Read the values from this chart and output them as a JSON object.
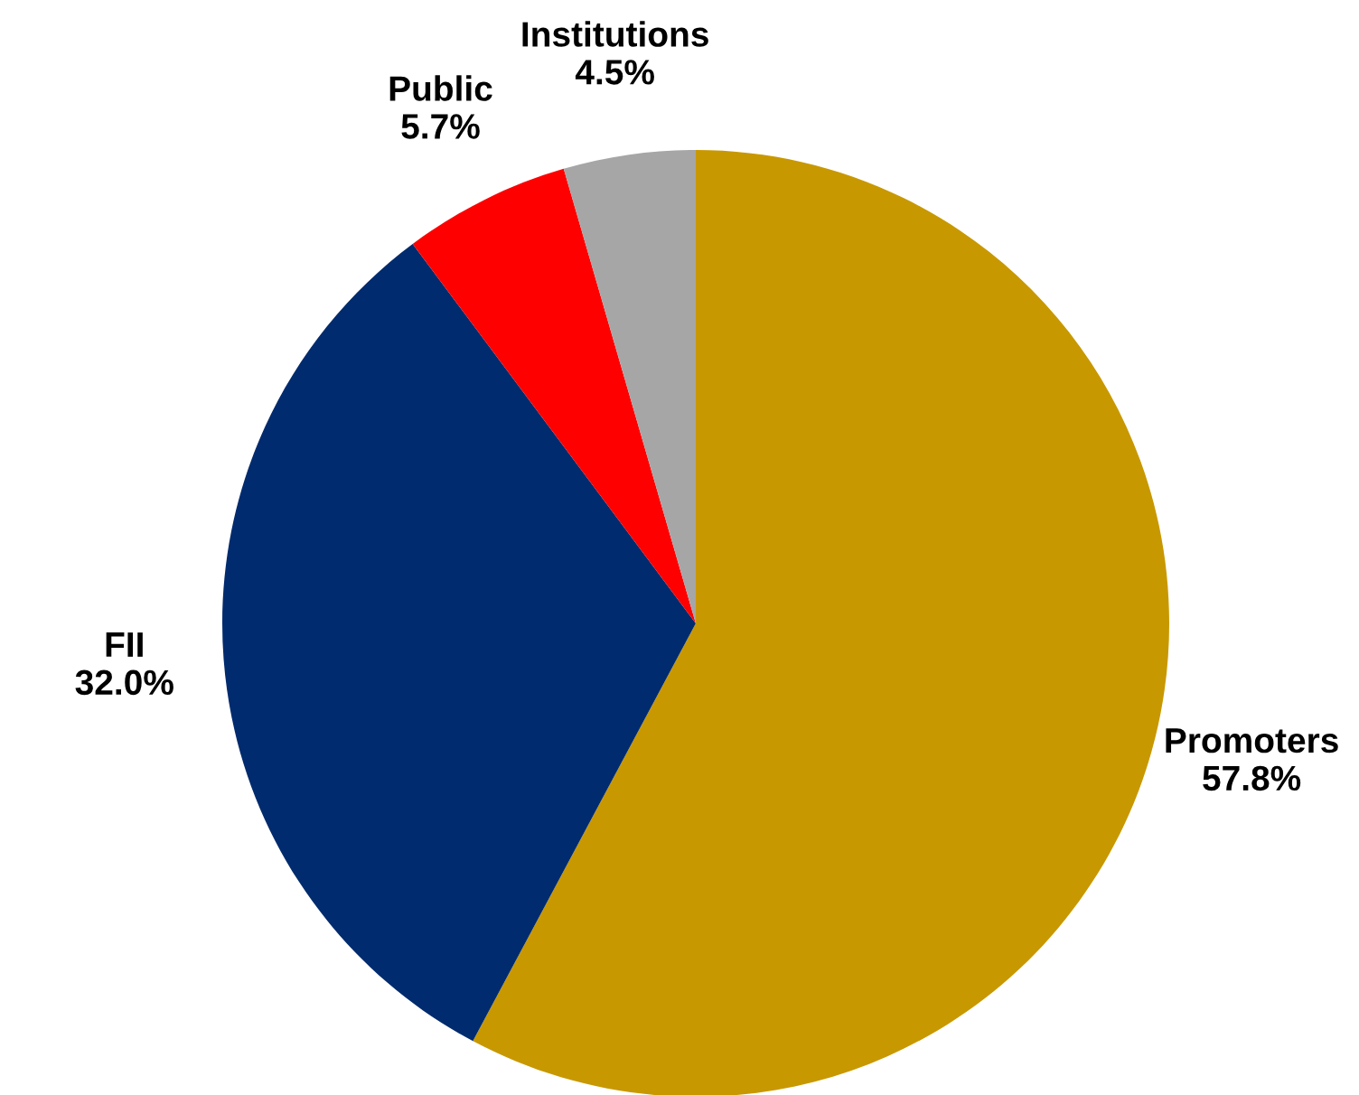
{
  "chart_data": {
    "type": "pie",
    "categories": [
      "Promoters",
      "FII",
      "Public",
      "Institutions"
    ],
    "values": [
      57.8,
      32.0,
      5.7,
      4.5
    ],
    "value_labels": [
      "57.8%",
      "32.0%",
      "5.7%",
      "4.5%"
    ],
    "colors": [
      "#c89800",
      "#002b6e",
      "#ff0000",
      "#a6a6a6"
    ]
  }
}
